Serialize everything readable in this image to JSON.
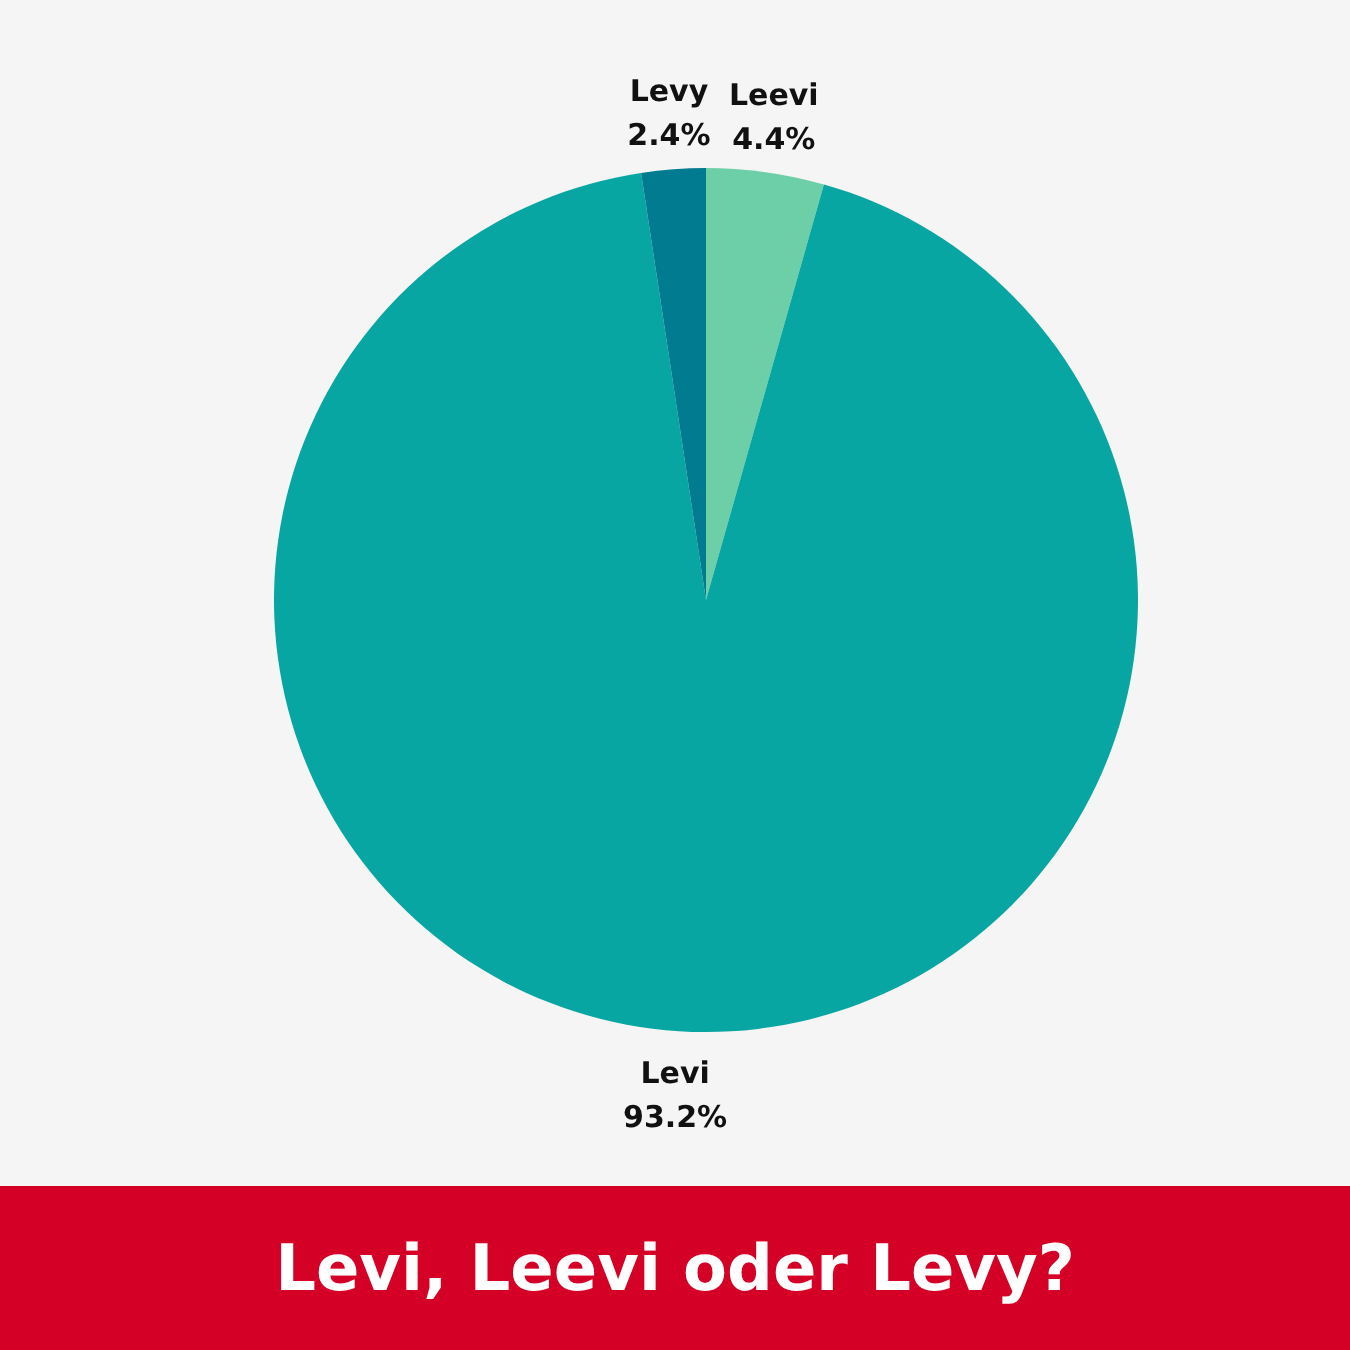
{
  "chart_data": {
    "type": "pie",
    "title": "Levi, Leevi oder Levy?",
    "categories": [
      "Leevi",
      "Levi",
      "Levy"
    ],
    "values": [
      4.4,
      93.2,
      2.4
    ],
    "colors": [
      "#6dcfa8",
      "#08a6a2",
      "#007b8f"
    ],
    "value_labels": [
      "4.4%",
      "93.2%",
      "2.4%"
    ]
  }
}
